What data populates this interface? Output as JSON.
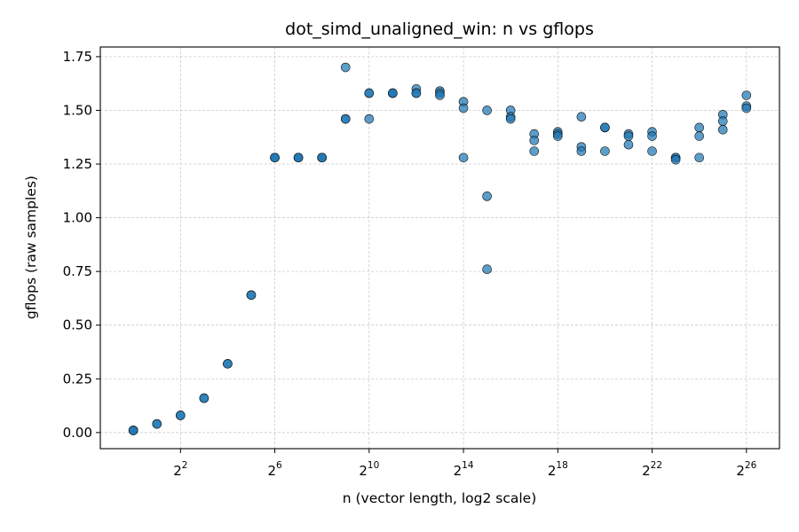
{
  "chart_data": {
    "type": "scatter",
    "title": "dot_simd_unaligned_win: n vs gflops",
    "xlabel": "n (vector length, log2 scale)",
    "ylabel": "gflops (raw samples)",
    "x_scale": "log2",
    "xlim_exponent": [
      -1.4,
      27.4
    ],
    "ylim": [
      -0.075,
      1.795
    ],
    "x_tick_base": "2",
    "x_tick_exponents": [
      "2",
      "6",
      "10",
      "14",
      "18",
      "22",
      "26"
    ],
    "y_ticks": [
      "0.00",
      "0.25",
      "0.50",
      "0.75",
      "1.00",
      "1.25",
      "1.50",
      "1.75"
    ],
    "grid": true,
    "marker_color": "#1f77b4",
    "series": [
      {
        "x_exponent": [
          0,
          0,
          0,
          1,
          1,
          2,
          2,
          3,
          3,
          4,
          4,
          5,
          5,
          6,
          6,
          6,
          7,
          7,
          7,
          8,
          8,
          8,
          9,
          9,
          9,
          10,
          10,
          10,
          11,
          11,
          11,
          12,
          12,
          12,
          13,
          13,
          13,
          14,
          14,
          14,
          15,
          15,
          15,
          16,
          16,
          16,
          17,
          17,
          17,
          18,
          18,
          18,
          19,
          19,
          19,
          20,
          20,
          20,
          21,
          21,
          21,
          22,
          22,
          22,
          23,
          23,
          23,
          24,
          24,
          24,
          25,
          25,
          25,
          26,
          26,
          26
        ],
        "y": [
          0.01,
          0.01,
          0.01,
          0.04,
          0.04,
          0.08,
          0.08,
          0.16,
          0.16,
          0.32,
          0.32,
          0.64,
          0.64,
          1.28,
          1.28,
          1.28,
          1.28,
          1.28,
          1.28,
          1.28,
          1.28,
          1.28,
          1.7,
          1.46,
          1.46,
          1.58,
          1.58,
          1.46,
          1.58,
          1.58,
          1.58,
          1.6,
          1.58,
          1.58,
          1.59,
          1.58,
          1.57,
          1.54,
          1.51,
          1.28,
          1.5,
          1.1,
          0.76,
          1.5,
          1.47,
          1.46,
          1.39,
          1.36,
          1.31,
          1.4,
          1.39,
          1.38,
          1.47,
          1.33,
          1.31,
          1.42,
          1.42,
          1.31,
          1.39,
          1.38,
          1.34,
          1.4,
          1.38,
          1.31,
          1.28,
          1.28,
          1.27,
          1.42,
          1.38,
          1.28,
          1.48,
          1.45,
          1.41,
          1.57,
          1.52,
          1.51
        ]
      }
    ]
  }
}
